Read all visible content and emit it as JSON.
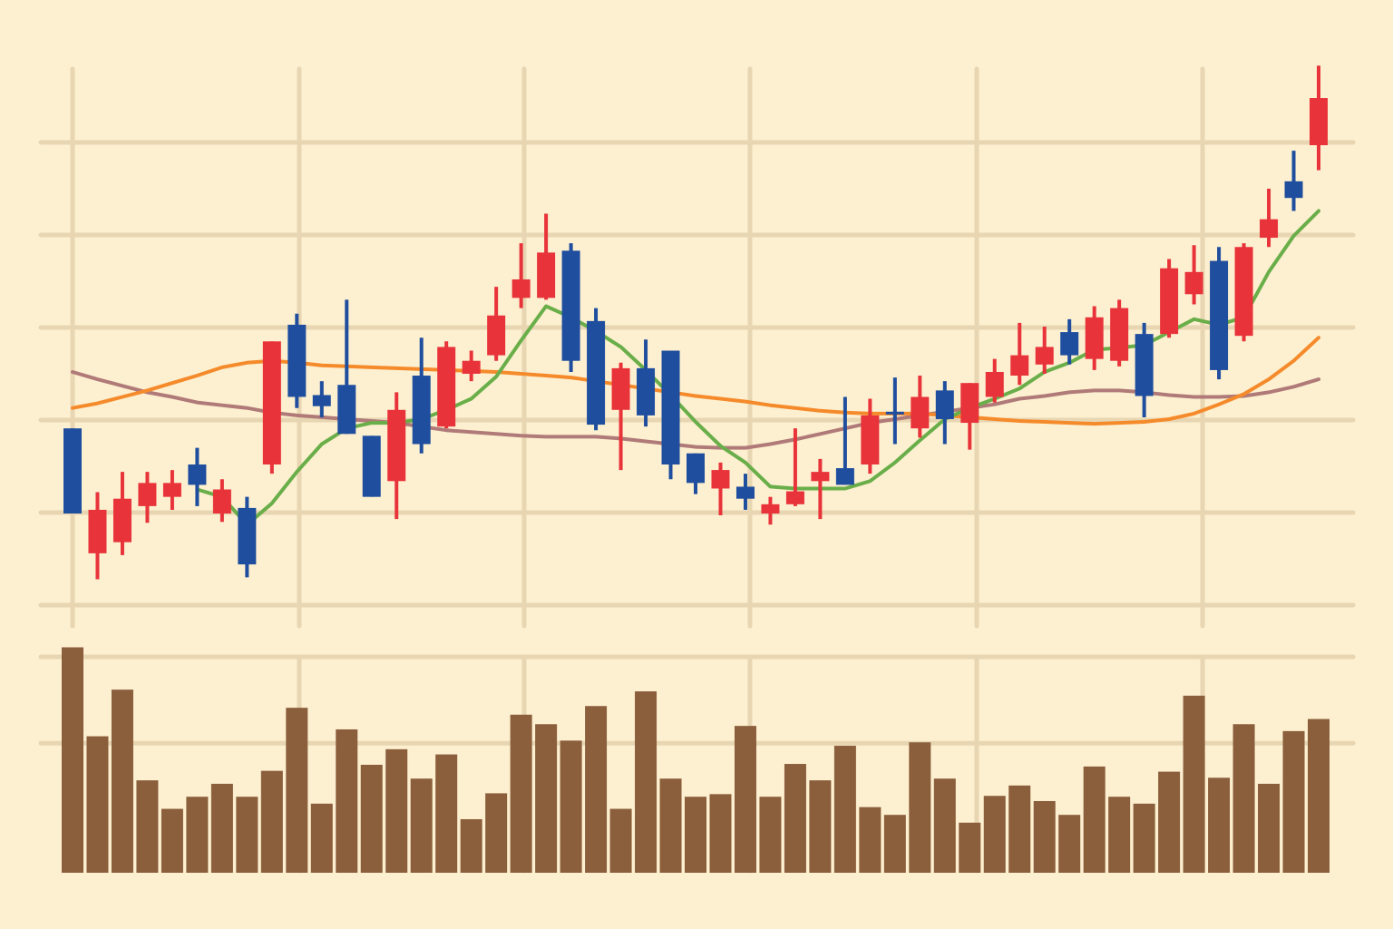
{
  "chart_data": {
    "type": "candlestick",
    "up_color": "#e8333a",
    "down_color": "#1f4e9e",
    "open": [
      19.1,
      5.6,
      6.8,
      10.7,
      11.7,
      15.2,
      9.9,
      10.5,
      15.2,
      30.3,
      22.7,
      23.8,
      18.3,
      13.4,
      24.8,
      19.3,
      25.0,
      27.0,
      33.2,
      33.2,
      38.3,
      30.7,
      21.1,
      25.6,
      27.5,
      16.4,
      12.6,
      12.8,
      9.9,
      10.9,
      13.4,
      14.8,
      15.2,
      20.9,
      19.1,
      23.2,
      19.7,
      22.5,
      24.8,
      26.0,
      29.5,
      26.6,
      26.4,
      29.3,
      29.3,
      33.6,
      37.2,
      29.1,
      39.7,
      45.8,
      49.7
    ],
    "high": [
      19.1,
      12.2,
      14.4,
      14.4,
      14.6,
      17.0,
      13.6,
      11.7,
      28.5,
      31.5,
      24.2,
      33.0,
      18.3,
      23.0,
      28.9,
      28.5,
      27.5,
      34.4,
      39.1,
      42.3,
      39.1,
      32.1,
      26.2,
      28.7,
      27.5,
      16.4,
      15.4,
      14.2,
      11.7,
      19.1,
      15.8,
      22.5,
      22.3,
      24.6,
      24.8,
      24.2,
      24.0,
      26.6,
      30.5,
      30.1,
      30.9,
      32.3,
      33.0,
      30.5,
      37.4,
      38.9,
      38.7,
      39.1,
      45.0,
      49.1,
      58.3
    ],
    "low": [
      9.9,
      2.8,
      5.4,
      8.9,
      10.3,
      10.7,
      9.0,
      3.0,
      14.2,
      21.3,
      20.3,
      18.5,
      11.7,
      9.3,
      16.4,
      19.1,
      24.2,
      26.4,
      32.1,
      33.0,
      25.2,
      18.9,
      14.6,
      19.3,
      13.6,
      12.0,
      9.7,
      10.3,
      8.7,
      10.7,
      9.3,
      13.0,
      14.2,
      17.4,
      18.1,
      17.4,
      16.8,
      21.9,
      23.8,
      25.0,
      26.0,
      25.4,
      25.8,
      20.3,
      28.9,
      32.5,
      24.4,
      28.5,
      38.7,
      42.6,
      47.0
    ],
    "close": [
      9.9,
      10.3,
      11.5,
      13.2,
      13.2,
      13.0,
      12.5,
      4.4,
      28.5,
      22.5,
      21.5,
      18.5,
      11.7,
      21.1,
      17.4,
      27.9,
      26.4,
      31.3,
      35.2,
      38.1,
      26.4,
      19.5,
      25.6,
      20.5,
      15.2,
      13.2,
      14.6,
      11.5,
      10.9,
      12.3,
      14.4,
      13.0,
      20.5,
      20.7,
      22.5,
      20.1,
      24.0,
      25.2,
      27.0,
      27.9,
      27.0,
      31.1,
      32.1,
      22.6,
      36.4,
      36.0,
      25.4,
      38.7,
      41.7,
      44.0,
      54.8
    ],
    "lines": [
      {
        "color": "#b07a78",
        "values": [
          25.2,
          24.4,
          23.7,
          23.0,
          22.5,
          21.9,
          21.6,
          21.3,
          20.8,
          20.5,
          20.3,
          20.1,
          19.9,
          19.7,
          19.3,
          18.9,
          18.7,
          18.5,
          18.3,
          18.2,
          18.2,
          18.2,
          18.0,
          17.7,
          17.4,
          17.1,
          17.0,
          17.0,
          17.4,
          17.9,
          18.5,
          19.1,
          19.7,
          20.1,
          20.5,
          20.9,
          21.3,
          21.7,
          22.3,
          22.6,
          23.0,
          23.2,
          23.2,
          23.0,
          22.7,
          22.5,
          22.5,
          22.6,
          23.0,
          23.6,
          24.4
        ]
      },
      {
        "color": "#f58a2b",
        "values": [
          21.3,
          21.8,
          22.5,
          23.2,
          24.0,
          24.8,
          25.7,
          26.2,
          26.4,
          26.2,
          25.9,
          25.8,
          25.7,
          25.6,
          25.5,
          25.4,
          25.3,
          25.2,
          25.0,
          24.8,
          24.6,
          24.2,
          23.8,
          23.4,
          23.0,
          22.6,
          22.3,
          22.0,
          21.6,
          21.3,
          21.0,
          20.8,
          20.7,
          20.7,
          20.7,
          20.5,
          20.3,
          20.1,
          19.9,
          19.8,
          19.7,
          19.6,
          19.7,
          19.8,
          20.1,
          20.7,
          21.7,
          22.8,
          24.4,
          26.4,
          28.9
        ]
      },
      {
        "color": "#6aae4a",
        "values": [
          null,
          null,
          null,
          null,
          null,
          12.5,
          11.7,
          8.7,
          11.0,
          14.4,
          17.4,
          19.1,
          19.7,
          19.7,
          20.1,
          21.1,
          22.3,
          24.7,
          28.6,
          32.3,
          31.1,
          29.6,
          27.9,
          25.4,
          22.7,
          19.8,
          17.2,
          15.4,
          12.8,
          12.6,
          12.6,
          12.6,
          13.4,
          15.4,
          17.8,
          20.1,
          21.3,
          22.3,
          23.4,
          25.2,
          26.2,
          27.6,
          27.8,
          28.1,
          29.5,
          30.9,
          30.3,
          31.1,
          36.0,
          39.9,
          42.6
        ]
      }
    ],
    "ylim": [
      -2,
      59.5
    ],
    "yticks": [
      0,
      10,
      20,
      30,
      40,
      50
    ],
    "grid": true,
    "volume": {
      "color": "#8b5e3c",
      "values": [
        26.1,
        15.8,
        21.2,
        10.7,
        7.4,
        8.8,
        10.3,
        8.8,
        11.8,
        19.1,
        8.0,
        16.6,
        12.5,
        14.3,
        10.9,
        13.7,
        6.2,
        9.2,
        18.3,
        17.2,
        15.3,
        19.3,
        7.4,
        21.0,
        10.9,
        8.8,
        9.1,
        17.0,
        8.8,
        12.6,
        10.7,
        14.7,
        7.6,
        6.7,
        15.1,
        10.9,
        5.8,
        8.9,
        10.1,
        8.3,
        6.7,
        12.3,
        8.8,
        8.0,
        11.7,
        20.5,
        11.0,
        17.2,
        10.3,
        16.4,
        17.8
      ],
      "ylim": [
        0,
        26.5
      ],
      "yticks": [
        15,
        25
      ]
    }
  }
}
